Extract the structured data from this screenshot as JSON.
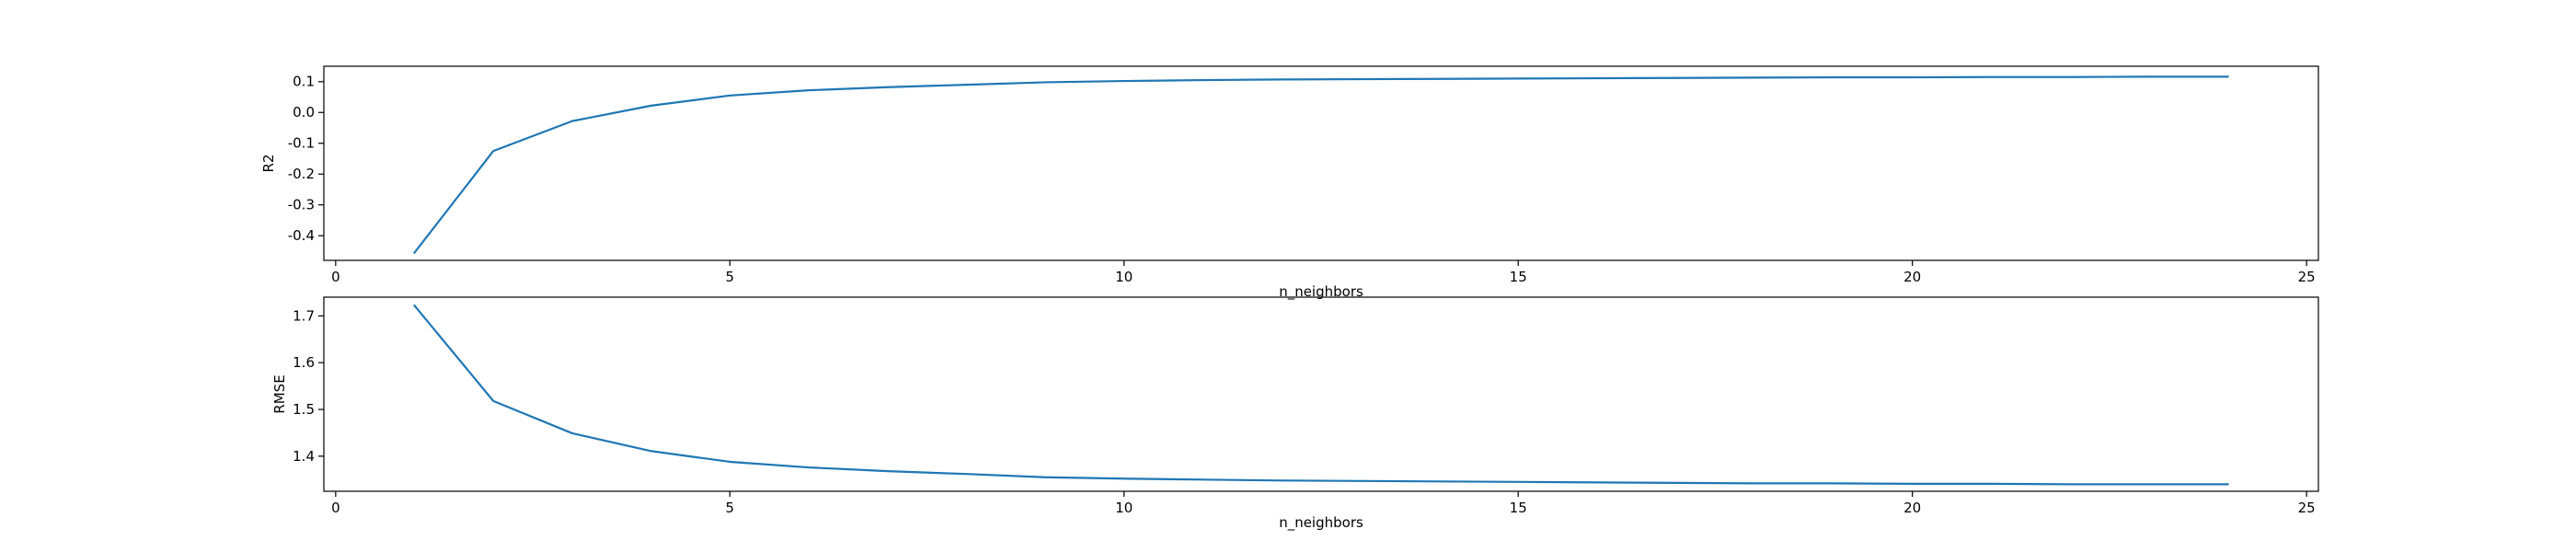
{
  "chart_data": [
    {
      "type": "line",
      "xlabel": "n_neighbors",
      "ylabel": "R2",
      "xlim": [
        -0.15,
        25.15
      ],
      "ylim": [
        -0.48,
        0.15
      ],
      "xticks": [
        0,
        5,
        10,
        15,
        20,
        25
      ],
      "yticks": [
        -0.4,
        -0.3,
        -0.2,
        -0.1,
        0.0,
        0.1
      ],
      "grid": false,
      "color": "#1f77b4",
      "series": [
        {
          "x": [
            1,
            2,
            3,
            4,
            5,
            6,
            7,
            8,
            9,
            10,
            11,
            12,
            13,
            14,
            15,
            16,
            17,
            18,
            19,
            20,
            21,
            22,
            23,
            24
          ],
          "values": [
            -0.455,
            -0.125,
            -0.028,
            0.022,
            0.055,
            0.072,
            0.082,
            0.09,
            0.098,
            0.102,
            0.105,
            0.107,
            0.108,
            0.109,
            0.11,
            0.111,
            0.112,
            0.113,
            0.114,
            0.114,
            0.115,
            0.115,
            0.116,
            0.116
          ]
        }
      ]
    },
    {
      "type": "line",
      "xlabel": "n_neighbors",
      "ylabel": "RMSE",
      "xlim": [
        -0.15,
        25.15
      ],
      "ylim": [
        1.325,
        1.74
      ],
      "xticks": [
        0,
        5,
        10,
        15,
        20,
        25
      ],
      "yticks": [
        1.4,
        1.5,
        1.6,
        1.7
      ],
      "grid": false,
      "color": "#1f77b4",
      "series": [
        {
          "x": [
            1,
            2,
            3,
            4,
            5,
            6,
            7,
            8,
            9,
            10,
            11,
            12,
            13,
            14,
            15,
            16,
            17,
            18,
            19,
            20,
            21,
            22,
            23,
            24
          ],
          "values": [
            1.722,
            1.518,
            1.449,
            1.411,
            1.388,
            1.376,
            1.368,
            1.362,
            1.355,
            1.352,
            1.35,
            1.348,
            1.347,
            1.346,
            1.345,
            1.344,
            1.343,
            1.342,
            1.342,
            1.341,
            1.341,
            1.34,
            1.34,
            1.34
          ]
        }
      ]
    }
  ]
}
